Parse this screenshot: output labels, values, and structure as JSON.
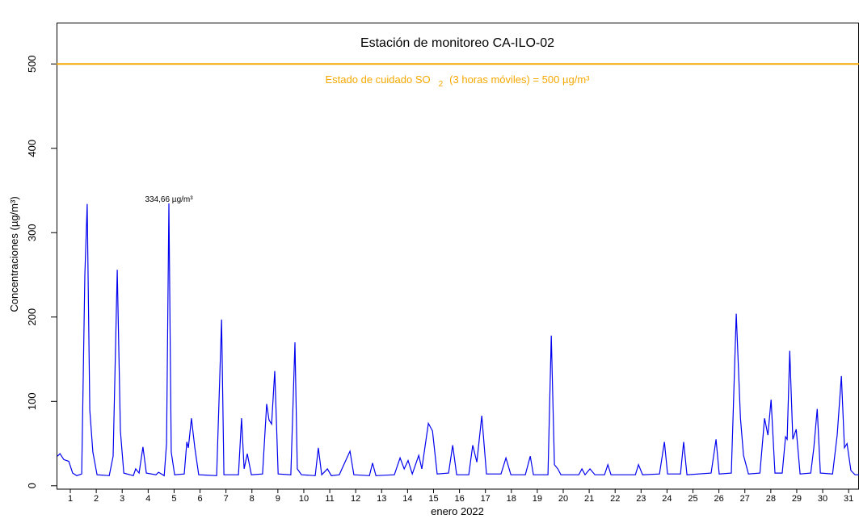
{
  "chart_data": {
    "type": "line",
    "title": "Estación de monitoreo  CA-ILO-02",
    "xlabel": "enero 2022",
    "ylabel": "Concentraciones (µg/m³)",
    "x": [
      0.5,
      0.6,
      0.75,
      0.94,
      1.09,
      1.25,
      1.44,
      1.56,
      1.65,
      1.75,
      1.87,
      2.03,
      2.5,
      2.65,
      2.81,
      2.93,
      3.06,
      3.43,
      3.52,
      3.65,
      3.8,
      3.93,
      4.3,
      4.4,
      4.62,
      4.71,
      4.8,
      4.89,
      5.02,
      5.39,
      5.49,
      5.55,
      5.67,
      5.8,
      5.95,
      6.64,
      6.73,
      6.83,
      6.92,
      7.48,
      7.6,
      7.7,
      7.82,
      7.98,
      8.41,
      8.57,
      8.66,
      8.76,
      8.88,
      9.01,
      9.5,
      9.66,
      9.75,
      9.91,
      10.44,
      10.56,
      10.69,
      10.91,
      11.06,
      11.37,
      11.5,
      11.78,
      11.93,
      12.53,
      12.65,
      12.78,
      13.49,
      13.71,
      13.87,
      14.02,
      14.18,
      14.43,
      14.55,
      14.8,
      14.96,
      15.14,
      15.58,
      15.74,
      15.89,
      16.36,
      16.51,
      16.67,
      16.86,
      17.04,
      17.6,
      17.79,
      17.98,
      18.54,
      18.73,
      18.85,
      19.41,
      19.54,
      19.66,
      19.79,
      19.91,
      20.6,
      20.72,
      20.84,
      21.03,
      21.22,
      21.59,
      21.72,
      21.84,
      22.78,
      22.9,
      23.06,
      23.71,
      23.9,
      24.02,
      24.52,
      24.64,
      24.77,
      25.7,
      25.89,
      26.01,
      26.48,
      26.67,
      26.83,
      26.95,
      27.14,
      27.58,
      27.76,
      27.89,
      28.01,
      28.16,
      28.44,
      28.57,
      28.63,
      28.73,
      28.85,
      28.98,
      29.13,
      29.54,
      29.66,
      29.79,
      29.91,
      30.38,
      30.56,
      30.72,
      30.84,
      30.94,
      31.09,
      31.25,
      31.4
    ],
    "series": [
      {
        "name": "SO2",
        "color": "#0000ee",
        "values": [
          35,
          38,
          31,
          29,
          15,
          12,
          14,
          250,
          334,
          90,
          40,
          13,
          12,
          35,
          256,
          65,
          15,
          12,
          20,
          15,
          46,
          15,
          13,
          16,
          12,
          50,
          334.66,
          40,
          13,
          14,
          52,
          45,
          80,
          45,
          13,
          12,
          100,
          197,
          13,
          13,
          80,
          20,
          38,
          13,
          14,
          97,
          78,
          73,
          136,
          14,
          13,
          170,
          20,
          13,
          12,
          45,
          13,
          20,
          12,
          13,
          22,
          41,
          13,
          12,
          27,
          12,
          13,
          33,
          20,
          30,
          14,
          36,
          20,
          74,
          65,
          14,
          15,
          48,
          13,
          13,
          48,
          28,
          83,
          14,
          14,
          33,
          13,
          13,
          35,
          13,
          13,
          178,
          25,
          20,
          13,
          13,
          20,
          13,
          20,
          13,
          13,
          25,
          13,
          13,
          25,
          13,
          14,
          52,
          14,
          14,
          52,
          13,
          15,
          55,
          14,
          15,
          204,
          80,
          36,
          14,
          15,
          80,
          60,
          102,
          15,
          15,
          58,
          55,
          160,
          55,
          67,
          14,
          15,
          45,
          91,
          15,
          14,
          60,
          130,
          45,
          50,
          18,
          13,
          13
        ]
      }
    ],
    "reference_line": {
      "value": 500,
      "color": "#f5a800",
      "label_main": "Estado de cuidado SO",
      "label_sub": "2",
      "label_rest": "(3 horas móviles) = 500 µg/m³"
    },
    "annotations": [
      {
        "text": "334,66 µg/m³",
        "x": 4.8,
        "y": 334.66
      }
    ],
    "xlim": [
      0.47,
      31.4
    ],
    "ylim": [
      -4,
      549
    ],
    "xticks": [
      1,
      2,
      3,
      4,
      5,
      6,
      7,
      8,
      9,
      10,
      11,
      12,
      13,
      14,
      15,
      16,
      17,
      18,
      19,
      20,
      21,
      22,
      23,
      24,
      25,
      26,
      27,
      28,
      29,
      30,
      31
    ],
    "yticks": [
      0,
      100,
      200,
      300,
      400,
      500
    ]
  }
}
